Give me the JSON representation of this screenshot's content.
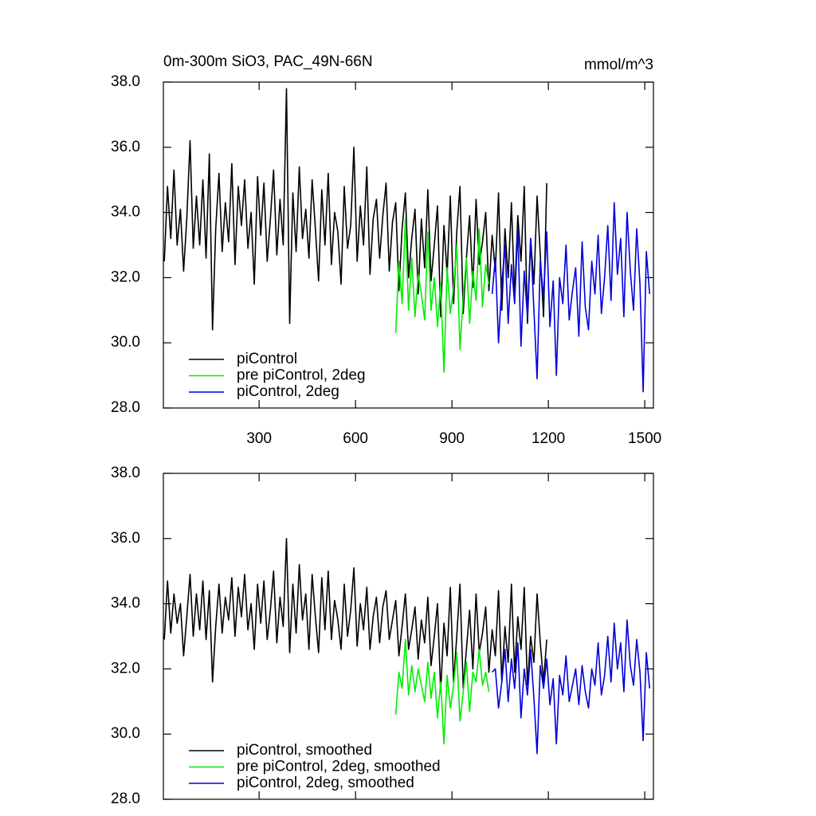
{
  "chart_data": [
    {
      "type": "line",
      "title": "0m-300m SiO3, PAC_49N-66N",
      "units": "mmol/m^3",
      "xlim": [
        2,
        1527
      ],
      "xticks": [
        300,
        600,
        900,
        1200,
        1500
      ],
      "show_xtick_labels": true,
      "ylim": [
        28,
        38
      ],
      "yticks": [
        {
          "value": 28,
          "label": "28.0"
        },
        {
          "value": 30,
          "label": "30.0"
        },
        {
          "value": 32,
          "label": "32.0"
        },
        {
          "value": 34,
          "label": "34.0"
        },
        {
          "value": 36,
          "label": "36.0"
        },
        {
          "value": 38,
          "label": "38.0"
        }
      ],
      "legend": "lower left",
      "series": [
        {
          "name": "piControl",
          "color": "#000000",
          "x": [
            5,
            15,
            25,
            35,
            45,
            55,
            65,
            75,
            85,
            95,
            105,
            115,
            125,
            135,
            145,
            155,
            165,
            175,
            185,
            195,
            205,
            215,
            225,
            235,
            245,
            255,
            265,
            275,
            285,
            295,
            305,
            315,
            325,
            335,
            345,
            355,
            365,
            375,
            385,
            395,
            405,
            415,
            425,
            435,
            445,
            455,
            465,
            475,
            485,
            495,
            505,
            515,
            525,
            535,
            545,
            555,
            565,
            575,
            585,
            595,
            605,
            615,
            625,
            635,
            645,
            655,
            665,
            675,
            685,
            695,
            705,
            715,
            725,
            735,
            745,
            755,
            765,
            775,
            785,
            795,
            805,
            815,
            825,
            835,
            845,
            855,
            865,
            875,
            885,
            895,
            905,
            915,
            925,
            935,
            945,
            955,
            965,
            975,
            985,
            995,
            1005,
            1015,
            1025,
            1035,
            1045,
            1055,
            1065,
            1075,
            1085,
            1095,
            1105,
            1115,
            1125,
            1135,
            1145,
            1155,
            1165,
            1175,
            1185,
            1195
          ],
          "values": [
            32.5,
            34.8,
            33.2,
            35.3,
            33.0,
            34.1,
            32.2,
            33.8,
            36.2,
            32.9,
            34.5,
            33.0,
            35.0,
            32.6,
            35.8,
            30.4,
            33.5,
            35.2,
            32.8,
            34.3,
            33.1,
            35.5,
            32.4,
            34.8,
            33.6,
            35.0,
            32.9,
            34.0,
            31.8,
            35.1,
            33.3,
            34.9,
            32.5,
            33.8,
            35.3,
            32.7,
            34.4,
            33.0,
            37.8,
            30.6,
            34.6,
            32.8,
            35.4,
            33.2,
            34.1,
            32.6,
            35.0,
            33.5,
            31.9,
            34.7,
            33.0,
            35.2,
            32.4,
            34.0,
            33.4,
            31.8,
            34.8,
            32.9,
            33.6,
            36.0,
            32.5,
            34.2,
            33.0,
            35.4,
            32.1,
            33.8,
            34.4,
            32.6,
            33.9,
            34.9,
            32.2,
            33.7,
            34.3,
            31.6,
            33.5,
            34.6,
            32.0,
            33.2,
            34.1,
            31.5,
            33.8,
            32.3,
            34.7,
            31.9,
            33.0,
            34.2,
            30.8,
            33.6,
            32.1,
            34.5,
            31.2,
            33.4,
            34.8,
            30.9,
            32.6,
            33.9,
            31.7,
            34.4,
            32.4,
            33.1,
            34.0,
            31.6,
            33.3,
            32.2,
            34.6,
            31.0,
            33.5,
            32.0,
            34.3,
            31.4,
            33.9,
            32.5,
            34.8,
            30.6,
            33.2,
            31.8,
            34.5,
            32.7,
            30.8,
            34.9
          ]
        },
        {
          "name": "pre piControl, 2deg",
          "color": "#00ee00",
          "x": [
            725,
            735,
            745,
            755,
            765,
            775,
            785,
            795,
            805,
            815,
            825,
            835,
            845,
            855,
            865,
            875,
            885,
            895,
            905,
            915,
            925,
            935,
            945,
            955,
            965,
            975,
            985,
            995,
            1005,
            1015
          ],
          "values": [
            30.3,
            32.5,
            31.2,
            33.8,
            31.0,
            32.6,
            30.8,
            32.1,
            31.5,
            30.7,
            33.4,
            31.0,
            32.0,
            30.5,
            31.8,
            29.1,
            32.3,
            30.9,
            31.7,
            33.0,
            29.8,
            31.4,
            32.6,
            30.6,
            32.2,
            31.3,
            33.5,
            31.1,
            32.4,
            31.8
          ]
        },
        {
          "name": "piControl, 2deg",
          "color": "#0000dd",
          "x": [
            1025,
            1035,
            1045,
            1055,
            1065,
            1075,
            1085,
            1095,
            1105,
            1115,
            1125,
            1135,
            1145,
            1155,
            1165,
            1175,
            1185,
            1195,
            1205,
            1215,
            1225,
            1235,
            1245,
            1255,
            1265,
            1275,
            1285,
            1295,
            1305,
            1315,
            1325,
            1335,
            1345,
            1355,
            1365,
            1375,
            1385,
            1395,
            1405,
            1415,
            1425,
            1435,
            1445,
            1455,
            1465,
            1475,
            1485,
            1495,
            1505,
            1515
          ],
          "values": [
            31.5,
            32.6,
            30.0,
            31.8,
            33.0,
            30.6,
            32.4,
            31.2,
            33.5,
            29.9,
            32.2,
            30.8,
            33.2,
            31.0,
            28.9,
            32.5,
            31.4,
            33.4,
            30.5,
            31.9,
            29.0,
            32.0,
            31.2,
            33.0,
            30.7,
            31.6,
            32.3,
            30.2,
            33.1,
            31.1,
            30.4,
            32.5,
            31.5,
            33.3,
            30.9,
            32.0,
            33.6,
            31.3,
            34.3,
            32.1,
            33.2,
            30.8,
            34.0,
            32.2,
            31.0,
            33.5,
            31.8,
            28.5,
            32.8,
            31.5
          ]
        }
      ]
    },
    {
      "type": "line",
      "xlim": [
        2,
        1527
      ],
      "xticks": [
        300,
        600,
        900,
        1200,
        1500
      ],
      "show_xtick_labels": false,
      "ylim": [
        28,
        38
      ],
      "yticks": [
        {
          "value": 28,
          "label": "28.0"
        },
        {
          "value": 30,
          "label": "30.0"
        },
        {
          "value": 32,
          "label": "32.0"
        },
        {
          "value": 34,
          "label": "34.0"
        },
        {
          "value": 36,
          "label": "36.0"
        },
        {
          "value": 38,
          "label": "38.0"
        }
      ],
      "legend": "lower left",
      "series": [
        {
          "name": "piControl, smoothed",
          "color": "#000000",
          "x": [
            5,
            15,
            25,
            35,
            45,
            55,
            65,
            75,
            85,
            95,
            105,
            115,
            125,
            135,
            145,
            155,
            165,
            175,
            185,
            195,
            205,
            215,
            225,
            235,
            245,
            255,
            265,
            275,
            285,
            295,
            305,
            315,
            325,
            335,
            345,
            355,
            365,
            375,
            385,
            395,
            405,
            415,
            425,
            435,
            445,
            455,
            465,
            475,
            485,
            495,
            505,
            515,
            525,
            535,
            545,
            555,
            565,
            575,
            585,
            595,
            605,
            615,
            625,
            635,
            645,
            655,
            665,
            675,
            685,
            695,
            705,
            715,
            725,
            735,
            745,
            755,
            765,
            775,
            785,
            795,
            805,
            815,
            825,
            835,
            845,
            855,
            865,
            875,
            885,
            895,
            905,
            915,
            925,
            935,
            945,
            955,
            965,
            975,
            985,
            995,
            1005,
            1015,
            1025,
            1035,
            1045,
            1055,
            1065,
            1075,
            1085,
            1095,
            1105,
            1115,
            1125,
            1135,
            1145,
            1155,
            1165,
            1175,
            1185,
            1195
          ],
          "values": [
            32.9,
            34.7,
            33.1,
            34.3,
            33.4,
            34.0,
            32.4,
            33.6,
            34.9,
            33.0,
            34.3,
            33.2,
            34.7,
            32.9,
            34.4,
            31.6,
            33.3,
            34.6,
            33.1,
            34.2,
            33.5,
            34.8,
            33.0,
            34.5,
            33.6,
            34.9,
            33.2,
            34.0,
            32.6,
            34.6,
            33.4,
            34.7,
            32.9,
            33.8,
            35.0,
            32.8,
            34.2,
            33.3,
            36.0,
            32.5,
            34.6,
            33.1,
            35.2,
            33.5,
            34.3,
            32.6,
            34.9,
            33.6,
            32.5,
            34.8,
            33.2,
            35.0,
            32.9,
            34.1,
            33.5,
            32.6,
            34.6,
            33.0,
            33.8,
            35.1,
            32.7,
            34.0,
            33.2,
            34.5,
            32.6,
            33.6,
            34.2,
            32.8,
            33.9,
            34.4,
            32.9,
            33.5,
            34.1,
            32.4,
            33.3,
            34.3,
            32.6,
            33.2,
            33.9,
            32.3,
            33.5,
            32.8,
            34.2,
            32.1,
            33.0,
            34.0,
            31.3,
            33.4,
            32.4,
            34.5,
            31.6,
            33.0,
            34.6,
            31.4,
            32.6,
            33.8,
            32.0,
            34.3,
            32.5,
            33.1,
            33.9,
            31.9,
            33.2,
            32.4,
            34.4,
            31.6,
            33.3,
            32.2,
            34.6,
            31.9,
            33.6,
            32.6,
            34.5,
            31.5,
            33.0,
            32.2,
            34.3,
            32.8,
            31.6,
            32.9
          ]
        },
        {
          "name": "pre piControl, 2deg, smoothed",
          "color": "#00ee00",
          "x": [
            725,
            735,
            745,
            755,
            765,
            775,
            785,
            795,
            805,
            815,
            825,
            835,
            845,
            855,
            865,
            875,
            885,
            895,
            905,
            915,
            925,
            935,
            945,
            955,
            965,
            975,
            985,
            995,
            1005,
            1015
          ],
          "values": [
            30.6,
            31.9,
            31.4,
            32.9,
            31.2,
            32.1,
            31.3,
            32.0,
            31.5,
            31.0,
            32.2,
            31.1,
            31.9,
            30.5,
            31.6,
            29.7,
            31.8,
            30.8,
            31.5,
            32.5,
            30.4,
            31.3,
            32.2,
            30.7,
            31.9,
            31.6,
            32.6,
            31.5,
            31.9,
            31.3
          ]
        },
        {
          "name": "piControl, 2deg, smoothed",
          "color": "#0000dd",
          "x": [
            1025,
            1035,
            1045,
            1055,
            1065,
            1075,
            1085,
            1095,
            1105,
            1115,
            1125,
            1135,
            1145,
            1155,
            1165,
            1175,
            1185,
            1195,
            1205,
            1215,
            1225,
            1235,
            1245,
            1255,
            1265,
            1275,
            1285,
            1295,
            1305,
            1315,
            1325,
            1335,
            1345,
            1355,
            1365,
            1375,
            1385,
            1395,
            1405,
            1415,
            1425,
            1435,
            1445,
            1455,
            1465,
            1475,
            1485,
            1495,
            1505,
            1515
          ],
          "values": [
            31.9,
            32.0,
            30.8,
            31.6,
            32.6,
            31.0,
            32.3,
            31.4,
            32.8,
            30.5,
            32.0,
            31.2,
            32.6,
            31.1,
            29.4,
            32.1,
            31.4,
            32.3,
            30.9,
            31.7,
            29.7,
            31.8,
            31.2,
            32.4,
            31.0,
            31.5,
            32.0,
            30.9,
            32.1,
            31.3,
            30.8,
            32.0,
            31.5,
            32.8,
            31.2,
            31.8,
            33.0,
            31.6,
            33.4,
            32.0,
            32.8,
            31.3,
            33.5,
            32.1,
            31.5,
            32.9,
            31.9,
            29.8,
            32.5,
            31.4
          ]
        }
      ]
    }
  ]
}
